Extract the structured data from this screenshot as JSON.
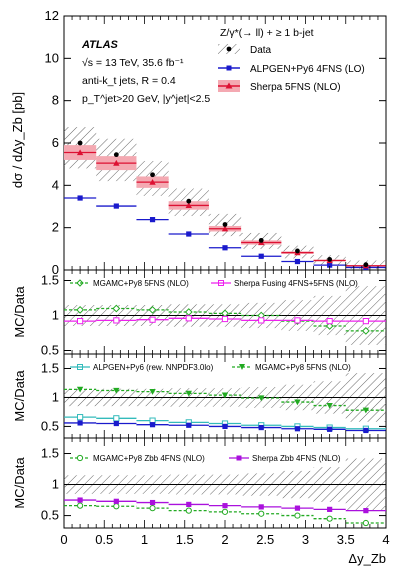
{
  "chart_data": [
    {
      "type": "line",
      "panel": "main",
      "ylabel": "dσ / dΔy_Zb [pb]",
      "ylim": [
        0,
        12
      ],
      "yticks": [
        0,
        2,
        4,
        6,
        8,
        10,
        12
      ],
      "texts": {
        "atlas": "ATLAS",
        "line1": "√s = 13 TeV, 35.6 fb⁻¹",
        "line2": "anti-k_t jets, R = 0.4",
        "line3": "p_T^jet>20 GeV, |y^jet|<2.5",
        "process": "Z/γ*(→ ll) + ≥ 1 b-jet"
      },
      "legend": {
        "placement": "top-right",
        "entries": [
          "Data",
          "ALPGEN+Py6 4FNS (LO)",
          "Sherpa 5FNS (NLO)"
        ]
      },
      "bins": [
        [
          0,
          0.4
        ],
        [
          0.4,
          0.9
        ],
        [
          0.9,
          1.3
        ],
        [
          1.3,
          1.8
        ],
        [
          1.8,
          2.2
        ],
        [
          2.2,
          2.7
        ],
        [
          2.7,
          3.1
        ],
        [
          3.1,
          3.5
        ],
        [
          3.5,
          4.0
        ]
      ],
      "series": [
        {
          "name": "Data",
          "centers": [
            0.2,
            0.65,
            1.1,
            1.55,
            2.0,
            2.45,
            2.9,
            3.3,
            3.75
          ],
          "values": [
            6.0,
            5.45,
            4.5,
            3.25,
            2.15,
            1.4,
            0.9,
            0.5,
            0.25
          ],
          "band_lo": [
            4.8,
            4.2,
            3.5,
            2.55,
            1.6,
            1.0,
            0.55,
            0.25,
            0.05
          ],
          "band_hi": [
            6.75,
            6.2,
            5.15,
            3.85,
            2.65,
            1.75,
            1.15,
            0.7,
            0.45
          ]
        },
        {
          "name": "ALPGEN+Py6 4FNS (LO)",
          "values": [
            3.4,
            3.02,
            2.38,
            1.7,
            1.05,
            0.65,
            0.4,
            0.23,
            0.12
          ]
        },
        {
          "name": "Sherpa 5FNS (NLO)",
          "values": [
            5.55,
            5.05,
            4.15,
            3.05,
            1.95,
            1.3,
            0.82,
            0.45,
            0.2
          ],
          "band_lo": [
            5.2,
            4.72,
            3.88,
            2.85,
            1.82,
            1.2,
            0.76,
            0.41,
            0.17
          ],
          "band_hi": [
            5.9,
            5.38,
            4.42,
            3.25,
            2.08,
            1.4,
            0.88,
            0.49,
            0.23
          ]
        }
      ]
    },
    {
      "type": "line",
      "panel": "ratio1",
      "ylabel": "MC/Data",
      "ylim": [
        0.45,
        1.65
      ],
      "yticks": [
        0.5,
        1,
        1.5
      ],
      "legend": {
        "placement": "top",
        "entries": [
          "MGAMC+Py8 5FNS (NLO)",
          "Sherpa Fusing 4FNS+5FNS (NLO)"
        ]
      },
      "data_band": {
        "lo": [
          0.85,
          0.85,
          0.85,
          0.84,
          0.84,
          0.82,
          0.78,
          0.72,
          0.58
        ],
        "hi": [
          1.15,
          1.15,
          1.15,
          1.16,
          1.16,
          1.18,
          1.22,
          1.28,
          1.42
        ]
      },
      "series": [
        {
          "name": "MGAMC+Py8 5FNS (NLO)",
          "values": [
            1.08,
            1.1,
            1.08,
            1.05,
            1.03,
            1.0,
            0.92,
            0.85,
            0.78
          ]
        },
        {
          "name": "Sherpa Fusing 4FNS+5FNS (NLO)",
          "values": [
            0.92,
            0.93,
            0.94,
            0.96,
            0.95,
            0.93,
            0.93,
            0.92,
            0.92
          ]
        }
      ]
    },
    {
      "type": "line",
      "panel": "ratio2",
      "ylabel": "MC/Data",
      "ylim": [
        0.3,
        1.75
      ],
      "yticks": [
        0.5,
        1,
        1.5
      ],
      "legend": {
        "placement": "top",
        "entries": [
          "ALPGEN+Py6 (rew. NNPDF3.0lo)",
          "MGAMC+Py8 5FNS (NLO)"
        ]
      },
      "data_band": {
        "lo": [
          0.85,
          0.85,
          0.85,
          0.84,
          0.84,
          0.82,
          0.78,
          0.72,
          0.58
        ],
        "hi": [
          1.15,
          1.15,
          1.15,
          1.16,
          1.16,
          1.18,
          1.22,
          1.28,
          1.42
        ]
      },
      "series": [
        {
          "name": "ALPGEN+Py6 (rew. NNPDF3.0lo)",
          "values": [
            0.66,
            0.64,
            0.6,
            0.57,
            0.55,
            0.52,
            0.5,
            0.48,
            0.46
          ]
        },
        {
          "name": "MGAMC+Py8 5FNS (NLO)",
          "values": [
            1.14,
            1.12,
            1.1,
            1.07,
            1.04,
            0.99,
            0.92,
            0.86,
            0.78
          ]
        },
        {
          "name": "ALPGEN+Py6 4FNS (LO)",
          "values": [
            0.56,
            0.55,
            0.53,
            0.52,
            0.5,
            0.48,
            0.46,
            0.45,
            0.43
          ]
        }
      ]
    },
    {
      "type": "line",
      "panel": "ratio3",
      "ylabel": "MC/Data",
      "xlabel": "Δy_Zb",
      "ylim": [
        0.3,
        1.75
      ],
      "xlim": [
        0,
        4
      ],
      "xticks": [
        0,
        0.5,
        1,
        1.5,
        2,
        2.5,
        3,
        3.5,
        4
      ],
      "yticks": [
        0.5,
        1,
        1.5
      ],
      "legend": {
        "placement": "top",
        "entries": [
          "MGAMC+Py8 Zbb 4FNS (NLO)",
          "Sherpa Zbb 4FNS (NLO)"
        ]
      },
      "data_band": {
        "lo": [
          0.85,
          0.85,
          0.85,
          0.84,
          0.84,
          0.82,
          0.78,
          0.72,
          0.58
        ],
        "hi": [
          1.15,
          1.15,
          1.15,
          1.16,
          1.16,
          1.18,
          1.22,
          1.28,
          1.42
        ]
      },
      "series": [
        {
          "name": "MGAMC+Py8 Zbb 4FNS (NLO)",
          "values": [
            0.66,
            0.65,
            0.62,
            0.58,
            0.56,
            0.53,
            0.5,
            0.45,
            0.38
          ]
        },
        {
          "name": "Sherpa Zbb 4FNS (NLO)",
          "values": [
            0.75,
            0.73,
            0.71,
            0.68,
            0.66,
            0.64,
            0.62,
            0.6,
            0.58
          ]
        }
      ]
    }
  ],
  "colors": {
    "data": "#000000",
    "alpgen": "#1a1acc",
    "sherpa": "#dd1133",
    "sherpa_band": "#f4a9b2",
    "mgamc": "#22aa22",
    "sherpa_fusing": "#ee22ee",
    "alpgen_rew": "#33bbbb",
    "sherpa_zbb": "#aa11dd"
  }
}
